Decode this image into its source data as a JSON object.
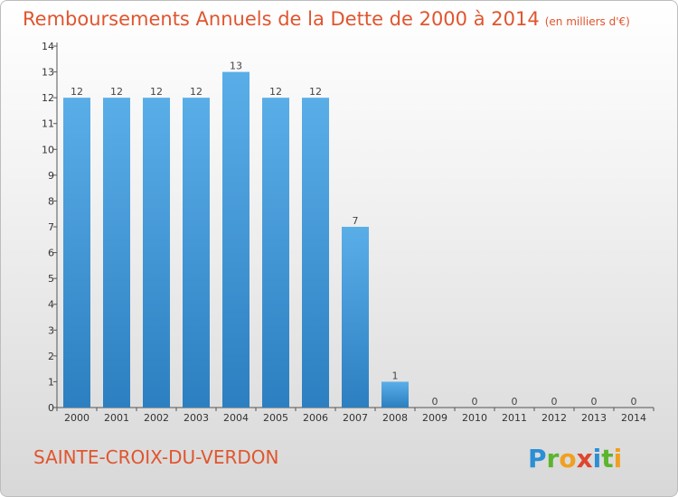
{
  "header": {
    "title": "Remboursements Annuels de la Dette de 2000 à 2014",
    "unit": "(en milliers d'€)"
  },
  "footer": {
    "commune": "SAINTE-CROIX-DU-VERDON",
    "brand": "Proxiti"
  },
  "colors": {
    "title": "#e0552e",
    "bar_top": "#5aaee8",
    "bar_bottom": "#2c7fc0"
  },
  "chart_data": {
    "type": "bar",
    "title": "Remboursements Annuels de la Dette de 2000 à 2014",
    "subtitle": "(en milliers d'€)",
    "categories": [
      "2000",
      "2001",
      "2002",
      "2003",
      "2004",
      "2005",
      "2006",
      "2007",
      "2008",
      "2009",
      "2010",
      "2011",
      "2012",
      "2013",
      "2014"
    ],
    "values": [
      12,
      12,
      12,
      12,
      13,
      12,
      12,
      7,
      1,
      0,
      0,
      0,
      0,
      0,
      0
    ],
    "ylim": [
      0,
      14
    ],
    "yticks": [
      0,
      1,
      2,
      3,
      4,
      5,
      6,
      7,
      8,
      9,
      10,
      11,
      12,
      13,
      14
    ],
    "grid": false,
    "legend": "none"
  }
}
